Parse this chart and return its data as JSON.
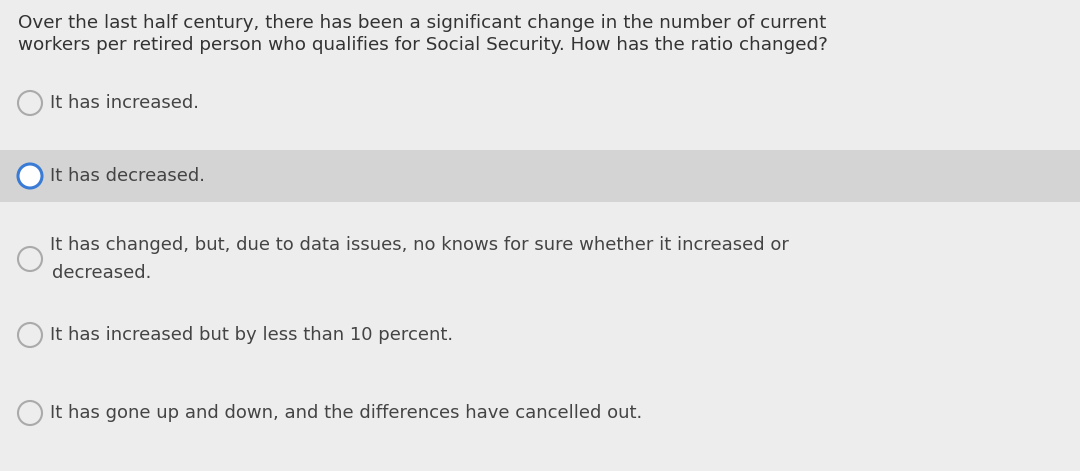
{
  "question_line1": "Over the last half century, there has been a significant change in the number of current",
  "question_line2": "workers per retired person who qualifies for Social Security. How has the ratio changed?",
  "options": [
    {
      "text": "It has increased.",
      "selected": false,
      "highlighted": false
    },
    {
      "text": "It has decreased.",
      "selected": true,
      "highlighted": true
    },
    {
      "text": "It has changed, but, due to data issues, no knows for sure whether it increased or\ndecreased.",
      "selected": false,
      "highlighted": false
    },
    {
      "text": "It has increased but by less than 10 percent.",
      "selected": false,
      "highlighted": false
    },
    {
      "text": "It has gone up and down, and the differences have cancelled out.",
      "selected": false,
      "highlighted": false
    }
  ],
  "card_color": "#eeeded",
  "highlight_color": "#d4d4d4",
  "text_color": "#444444",
  "question_color": "#333333",
  "selected_ring_color": "#3a7bd5",
  "unselected_ring_color": "#aaaaaa",
  "font_size_question": 13.2,
  "font_size_options": 13.0,
  "fig_width": 10.8,
  "fig_height": 4.71,
  "dpi": 100
}
